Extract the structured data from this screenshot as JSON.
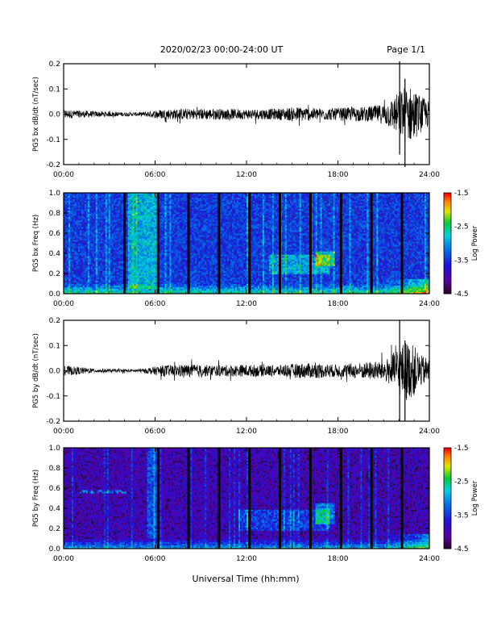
{
  "header": {
    "title": "2020/02/23  00:00-24:00 UT",
    "page": "Page 1/1"
  },
  "xlabel": "Universal Time (hh:mm)",
  "chart_data": [
    {
      "type": "line",
      "ylabel": "PG5 bx dB/dt (nT/sec)",
      "xlim": [
        0,
        24
      ],
      "ylim": [
        -0.2,
        0.2
      ],
      "x_ticks": [
        "00:00",
        "06:00",
        "12:00",
        "18:00",
        "24:00"
      ],
      "y_ticks": [
        "0.2",
        "0.1",
        "0.0",
        "-0.1",
        "-0.2"
      ],
      "amplitude_envelope": {
        "hours": [
          0,
          2,
          4,
          5,
          6.5,
          8,
          10,
          12,
          14,
          15.5,
          16.5,
          18,
          20,
          21,
          21.5,
          22,
          22.5,
          23,
          23.5,
          24
        ],
        "amp": [
          0.018,
          0.012,
          0.008,
          0.007,
          0.02,
          0.022,
          0.022,
          0.02,
          0.022,
          0.03,
          0.024,
          0.025,
          0.03,
          0.04,
          0.06,
          0.09,
          0.12,
          0.1,
          0.07,
          0.05
        ]
      },
      "spikes": [
        {
          "hour": 22.05,
          "min": -0.16,
          "max": 0.21
        },
        {
          "hour": 22.4,
          "min": -0.21,
          "max": 0.14
        }
      ]
    },
    {
      "type": "heatmap",
      "ylabel": "PG5 bx Freq (Hz)",
      "xlim": [
        0,
        24
      ],
      "ylim": [
        0,
        1.0
      ],
      "x_ticks": [
        "00:00",
        "06:00",
        "12:00",
        "18:00",
        "24:00"
      ],
      "y_ticks": [
        "1.0",
        "0.8",
        "0.6",
        "0.4",
        "0.2",
        "0.0"
      ],
      "colorbar": {
        "label": "Log Power",
        "range": [
          -4.5,
          -1.5
        ],
        "ticks": [
          "-1.5",
          "-2.5",
          "-3.5",
          "-4.5"
        ]
      },
      "data_gaps_hours": [
        4.0,
        6.2,
        8.2,
        10.2,
        12.2,
        14.2,
        16.2,
        18.2,
        20.2,
        22.2
      ],
      "features": [
        {
          "type": "noise-band",
          "hours": [
            4.2,
            6.2
          ],
          "freq": [
            0.05,
            1.0
          ]
        },
        {
          "type": "emission",
          "hours": [
            13.5,
            17.5
          ],
          "freq": [
            0.2,
            0.38
          ]
        },
        {
          "type": "blob",
          "hours": [
            16.5,
            17.8
          ],
          "freq": [
            0.28,
            0.42
          ]
        }
      ]
    },
    {
      "type": "line",
      "ylabel": "PG5 by dB/dt (nT/sec)",
      "xlim": [
        0,
        24
      ],
      "ylim": [
        -0.2,
        0.2
      ],
      "x_ticks": [
        "00:00",
        "06:00",
        "12:00",
        "18:00",
        "24:00"
      ],
      "y_ticks": [
        "0.2",
        "0.1",
        "0.0",
        "-0.1",
        "-0.2"
      ],
      "amplitude_envelope": {
        "hours": [
          0,
          1,
          2,
          4,
          5,
          6.5,
          8,
          10,
          12,
          14,
          15.5,
          16.5,
          18,
          20,
          21,
          21.5,
          22,
          22.5,
          23,
          23.5,
          24
        ],
        "amp": [
          0.02,
          0.015,
          0.008,
          0.006,
          0.006,
          0.022,
          0.025,
          0.022,
          0.024,
          0.022,
          0.03,
          0.03,
          0.025,
          0.035,
          0.04,
          0.06,
          0.1,
          0.12,
          0.1,
          0.06,
          0.05
        ]
      },
      "spikes": [
        {
          "hour": 22.05,
          "min": -0.2,
          "max": 0.2
        },
        {
          "hour": 22.4,
          "min": -0.2,
          "max": 0.12
        }
      ]
    },
    {
      "type": "heatmap",
      "ylabel": "PG5 by Freq (Hz)",
      "xlim": [
        0,
        24
      ],
      "ylim": [
        0,
        1.0
      ],
      "x_ticks": [
        "00:00",
        "06:00",
        "12:00",
        "18:00",
        "24:00"
      ],
      "y_ticks": [
        "1.0",
        "0.8",
        "0.6",
        "0.4",
        "0.2",
        "0.0"
      ],
      "colorbar": {
        "label": "Log Power",
        "range": [
          -4.5,
          -1.5
        ],
        "ticks": [
          "-1.5",
          "-2.5",
          "-3.5",
          "-4.5"
        ]
      },
      "data_gaps_hours": [
        6.2,
        8.2,
        10.2,
        12.2,
        14.2,
        16.2,
        18.2,
        20.2,
        22.2
      ],
      "features": [
        {
          "type": "noise-band",
          "hours": [
            5.5,
            6.2
          ],
          "freq": [
            0.1,
            1.0
          ]
        },
        {
          "type": "line",
          "hours": [
            1.0,
            4.2
          ],
          "freq": [
            0.55,
            0.58
          ]
        },
        {
          "type": "emission",
          "hours": [
            11.5,
            17.5
          ],
          "freq": [
            0.18,
            0.38
          ]
        },
        {
          "type": "blob",
          "hours": [
            16.5,
            17.8
          ],
          "freq": [
            0.25,
            0.45
          ]
        }
      ]
    }
  ]
}
